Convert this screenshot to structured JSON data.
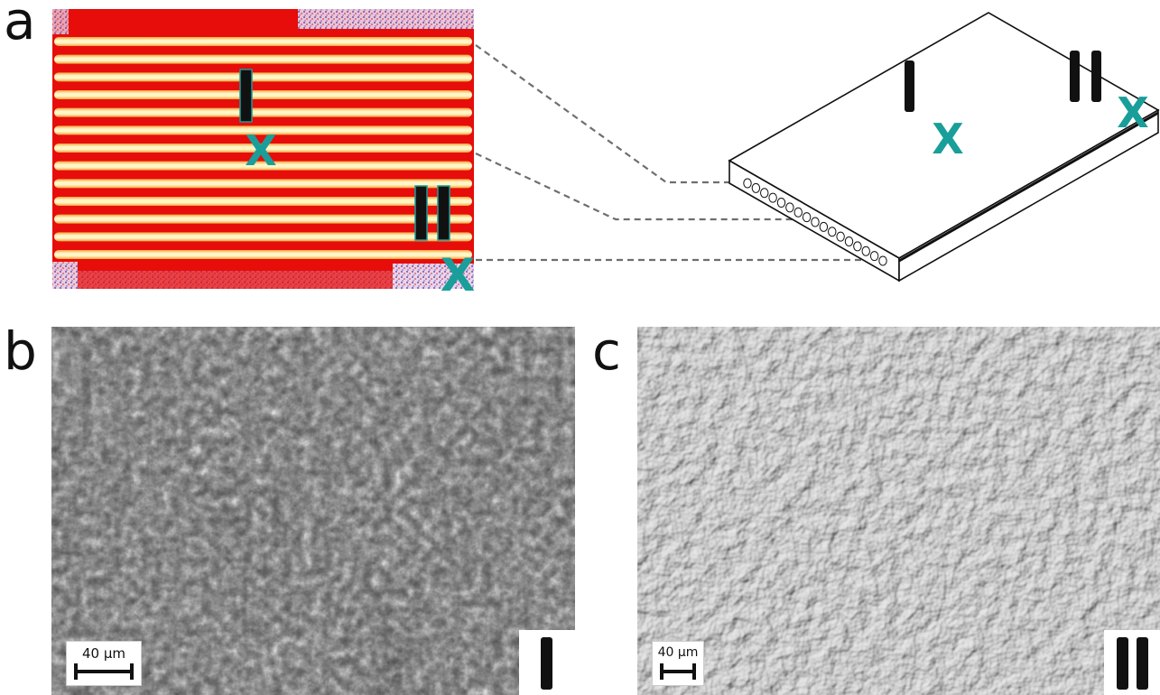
{
  "figure": {
    "panels": [
      {
        "id": "a",
        "letter": "a"
      },
      {
        "id": "b",
        "letter": "b"
      },
      {
        "id": "c",
        "letter": "c"
      }
    ],
    "markers": {
      "location_one": "I",
      "location_two": "II",
      "cross": "X"
    },
    "panel_a": {
      "stripe_count": 13,
      "marker_color": "#1a9e9a"
    },
    "panel_b": {
      "scalebar_label": "40 µm",
      "location_label": "I"
    },
    "panel_c": {
      "scalebar_label": "40 µm",
      "location_label": "II"
    },
    "colors": {
      "heatmap_background": "#e60d0a",
      "stripe_core": "#fff6c8",
      "stripe_edge": "#f7a23a",
      "noise": "#5a4fb5",
      "teal": "#1a9e9a",
      "dash": "#6e6e6e"
    }
  }
}
